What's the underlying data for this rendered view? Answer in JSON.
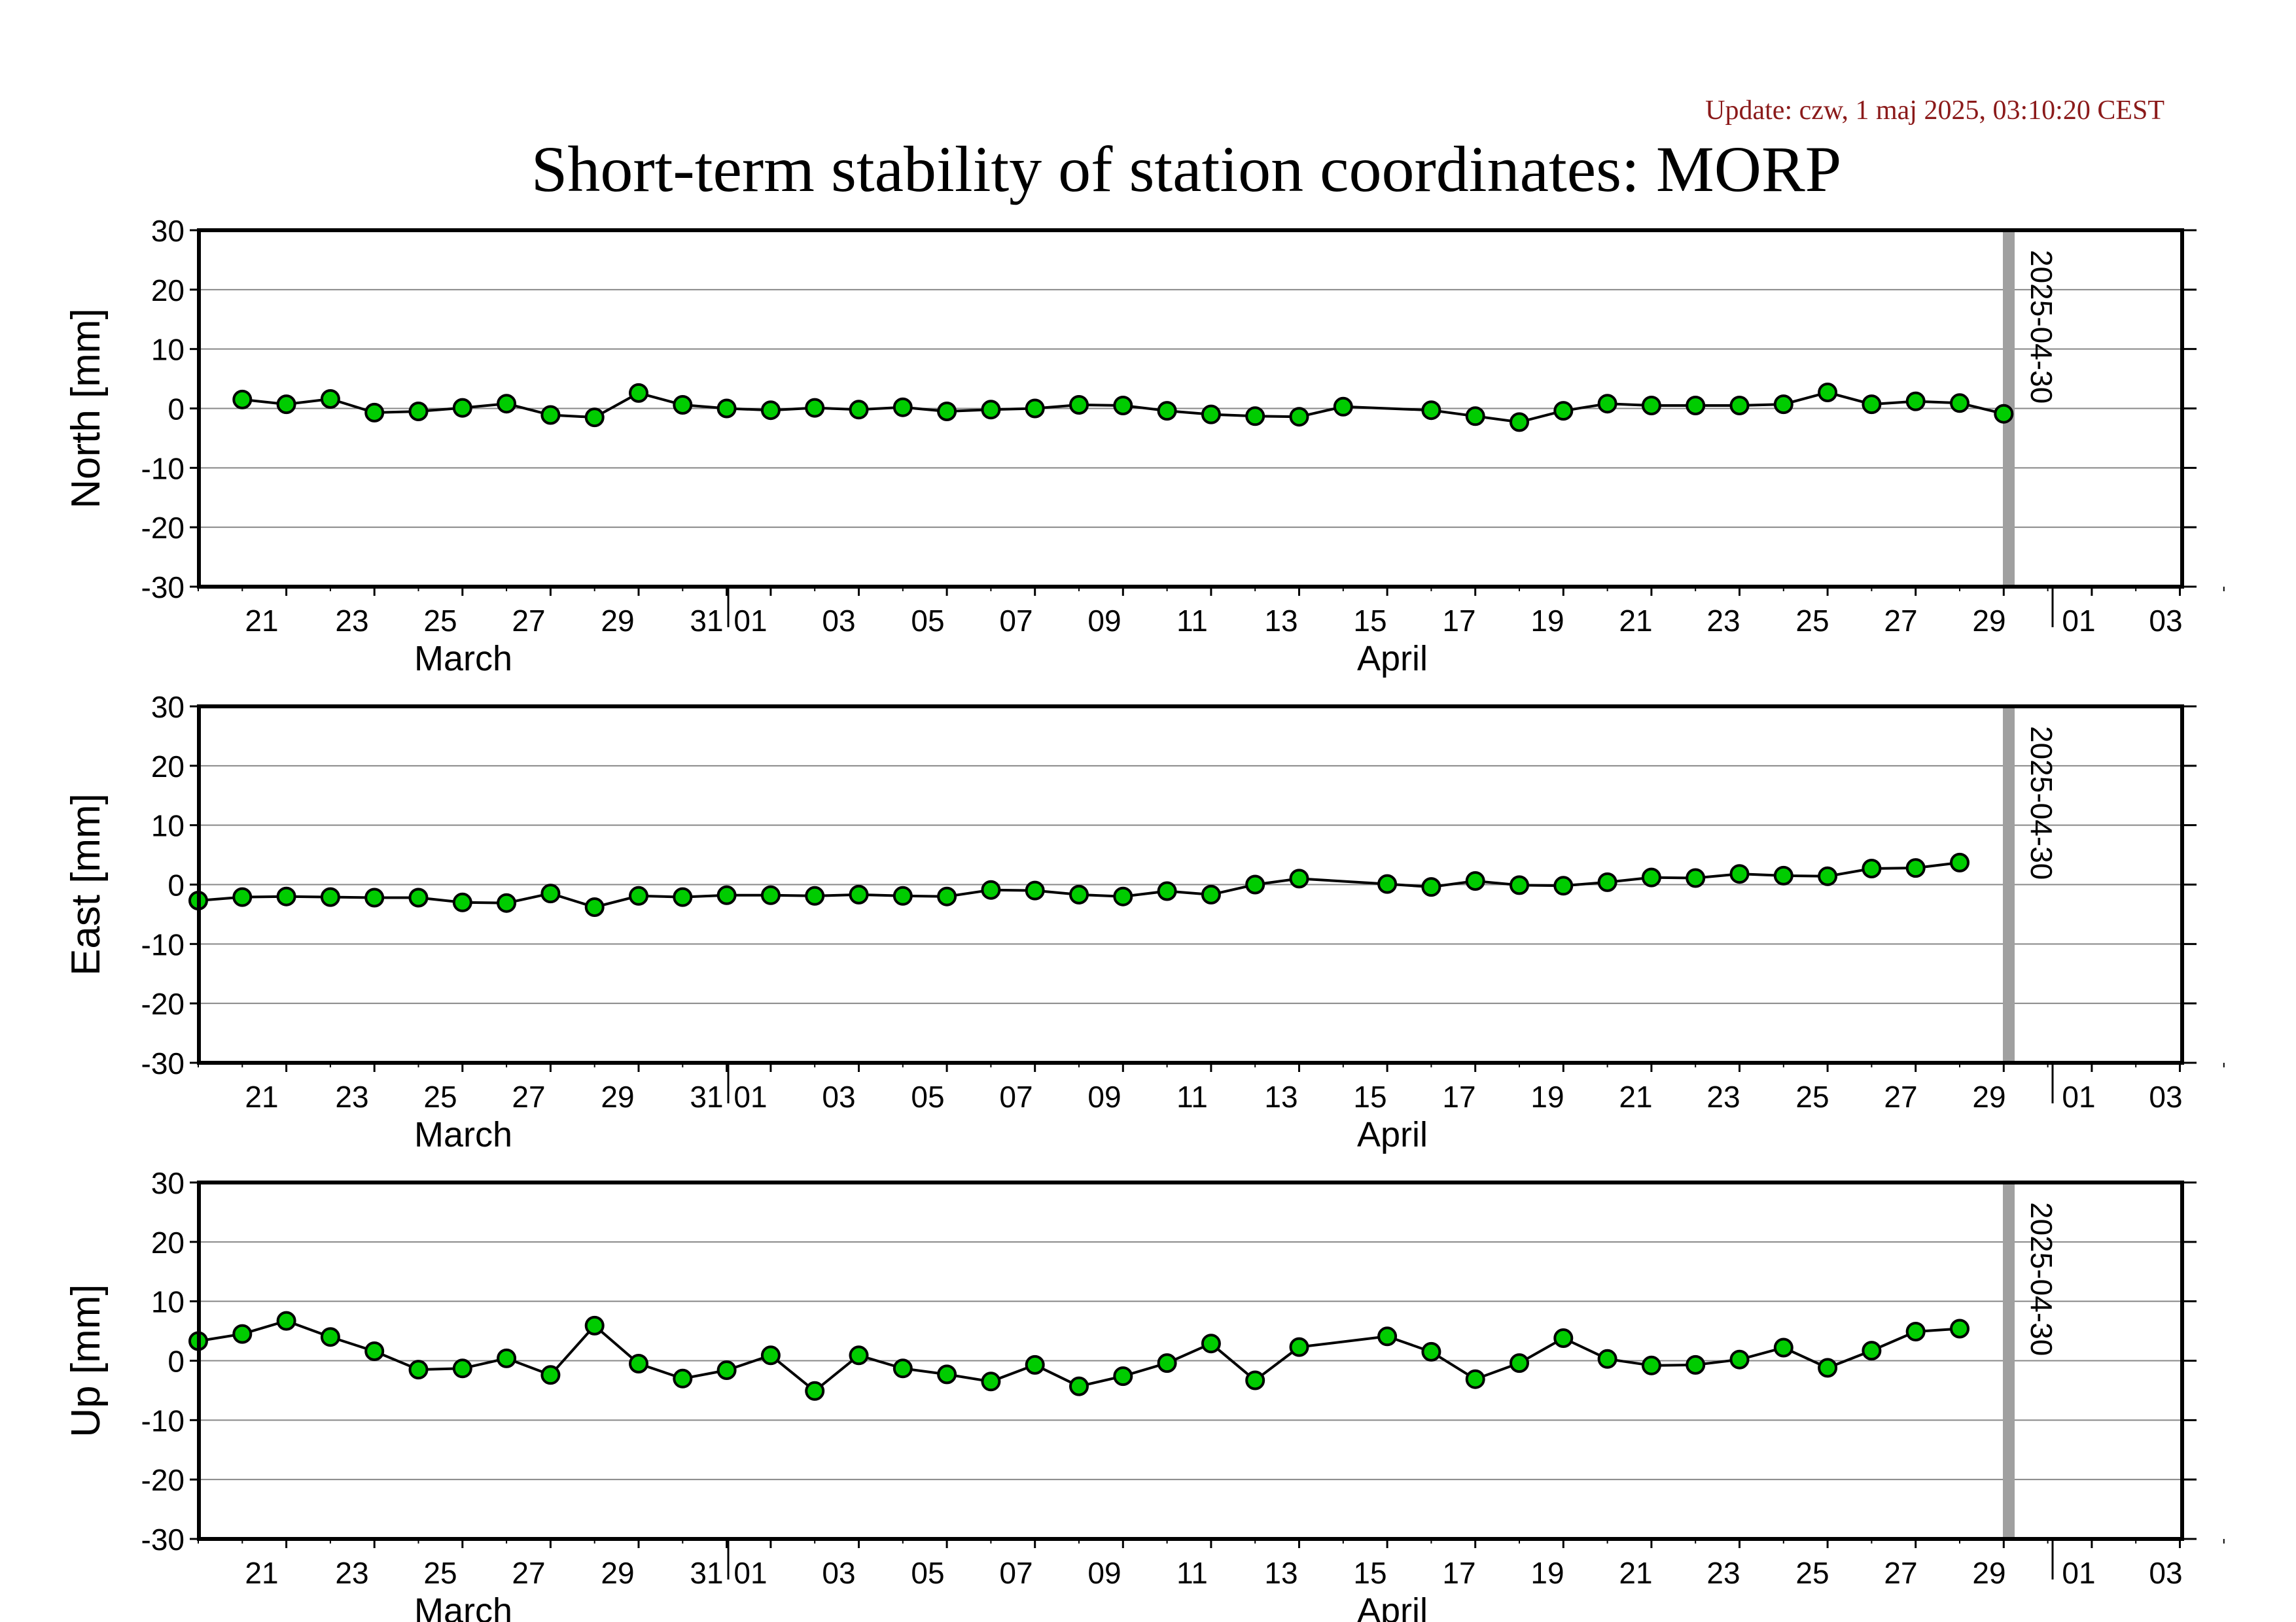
{
  "update_text": "Update: czw, 1 maj 2025, 03:10:20 CEST",
  "title": "Short-term stability of station coordinates: MORP",
  "colors": {
    "marker_fill": "#00cc00",
    "marker_stroke": "#000000",
    "line": "#000000",
    "grid": "#888888",
    "current_day_bar": "#a0a0a0",
    "update_text": "#8b1a1a"
  },
  "x_axis": {
    "range": [
      "2025-03-19",
      "2025-05-04"
    ],
    "tick_labels": [
      "21",
      "23",
      "25",
      "27",
      "29",
      "31",
      "01",
      "03",
      "05",
      "07",
      "09",
      "11",
      "13",
      "15",
      "17",
      "19",
      "21",
      "23",
      "25",
      "27",
      "29",
      "01",
      "03"
    ],
    "month_labels": [
      "March",
      "April"
    ]
  },
  "current_day_label": "2025-04-30",
  "chart_data": [
    {
      "type": "line",
      "ylabel": "North [mm]",
      "ylim": [
        -30,
        30
      ],
      "yticks": [
        30,
        20,
        10,
        0,
        -10,
        -20,
        -30
      ],
      "grid": true,
      "x": [
        "2025-03-20",
        "2025-03-21",
        "2025-03-22",
        "2025-03-23",
        "2025-03-24",
        "2025-03-25",
        "2025-03-26",
        "2025-03-27",
        "2025-03-28",
        "2025-03-29",
        "2025-03-30",
        "2025-03-31",
        "2025-04-01",
        "2025-04-02",
        "2025-04-03",
        "2025-04-04",
        "2025-04-05",
        "2025-04-06",
        "2025-04-07",
        "2025-04-08",
        "2025-04-09",
        "2025-04-10",
        "2025-04-11",
        "2025-04-12",
        "2025-04-13",
        "2025-04-14",
        "2025-04-16",
        "2025-04-17",
        "2025-04-18",
        "2025-04-19",
        "2025-04-20",
        "2025-04-21",
        "2025-04-22",
        "2025-04-23",
        "2025-04-24",
        "2025-04-25",
        "2025-04-26",
        "2025-04-27",
        "2025-04-28",
        "2025-04-29"
      ],
      "values": [
        1.5,
        0.7,
        1.6,
        -0.7,
        -0.5,
        0.1,
        0.8,
        -1.1,
        -1.5,
        2.6,
        0.6,
        0.0,
        -0.3,
        0.1,
        -0.2,
        0.2,
        -0.5,
        -0.2,
        0.0,
        0.6,
        0.5,
        -0.4,
        -1.0,
        -1.3,
        -1.4,
        0.3,
        -0.3,
        -1.3,
        -2.3,
        -0.4,
        0.8,
        0.5,
        0.5,
        0.5,
        0.7,
        2.7,
        0.7,
        1.2,
        0.9,
        -0.9
      ]
    },
    {
      "type": "line",
      "ylabel": "East [mm]",
      "ylim": [
        -30,
        30
      ],
      "yticks": [
        30,
        20,
        10,
        0,
        -10,
        -20,
        -30
      ],
      "grid": true,
      "x": [
        "2025-03-19",
        "2025-03-20",
        "2025-03-21",
        "2025-03-22",
        "2025-03-23",
        "2025-03-24",
        "2025-03-25",
        "2025-03-26",
        "2025-03-27",
        "2025-03-28",
        "2025-03-29",
        "2025-03-30",
        "2025-03-31",
        "2025-04-01",
        "2025-04-02",
        "2025-04-03",
        "2025-04-04",
        "2025-04-05",
        "2025-04-06",
        "2025-04-07",
        "2025-04-08",
        "2025-04-09",
        "2025-04-10",
        "2025-04-11",
        "2025-04-12",
        "2025-04-13",
        "2025-04-15",
        "2025-04-16",
        "2025-04-17",
        "2025-04-18",
        "2025-04-19",
        "2025-04-20",
        "2025-04-21",
        "2025-04-22",
        "2025-04-23",
        "2025-04-24",
        "2025-04-25",
        "2025-04-26",
        "2025-04-27",
        "2025-04-28"
      ],
      "values": [
        -2.7,
        -2.1,
        -2.0,
        -2.1,
        -2.2,
        -2.2,
        -3.0,
        -3.1,
        -1.5,
        -3.8,
        -1.9,
        -2.1,
        -1.8,
        -1.8,
        -1.9,
        -1.7,
        -1.9,
        -2.0,
        -0.9,
        -1.0,
        -1.7,
        -2.0,
        -1.1,
        -1.7,
        0.0,
        1.0,
        0.1,
        -0.4,
        0.6,
        -0.1,
        -0.2,
        0.4,
        1.2,
        1.1,
        1.8,
        1.5,
        1.4,
        2.7,
        2.8,
        3.7
      ]
    },
    {
      "type": "line",
      "ylabel": "Up [mm]",
      "ylim": [
        -30,
        30
      ],
      "yticks": [
        30,
        20,
        10,
        0,
        -10,
        -20,
        -30
      ],
      "grid": true,
      "x": [
        "2025-03-19",
        "2025-03-20",
        "2025-03-21",
        "2025-03-22",
        "2025-03-23",
        "2025-03-24",
        "2025-03-25",
        "2025-03-26",
        "2025-03-27",
        "2025-03-28",
        "2025-03-29",
        "2025-03-30",
        "2025-03-31",
        "2025-04-01",
        "2025-04-02",
        "2025-04-03",
        "2025-04-04",
        "2025-04-05",
        "2025-04-06",
        "2025-04-07",
        "2025-04-08",
        "2025-04-09",
        "2025-04-10",
        "2025-04-11",
        "2025-04-12",
        "2025-04-13",
        "2025-04-15",
        "2025-04-16",
        "2025-04-17",
        "2025-04-18",
        "2025-04-19",
        "2025-04-20",
        "2025-04-21",
        "2025-04-22",
        "2025-04-23",
        "2025-04-24",
        "2025-04-25",
        "2025-04-26",
        "2025-04-27",
        "2025-04-28"
      ],
      "values": [
        3.3,
        4.5,
        6.7,
        4.0,
        1.6,
        -1.5,
        -1.3,
        0.4,
        -2.4,
        5.9,
        -0.5,
        -3.0,
        -1.6,
        0.9,
        -5.1,
        0.9,
        -1.3,
        -2.3,
        -3.5,
        -0.7,
        -4.3,
        -2.6,
        -0.4,
        2.9,
        -3.3,
        2.3,
        4.1,
        1.5,
        -3.1,
        -0.4,
        3.8,
        0.3,
        -0.8,
        -0.7,
        0.2,
        2.2,
        -1.2,
        1.7,
        4.9,
        5.4
      ]
    }
  ]
}
